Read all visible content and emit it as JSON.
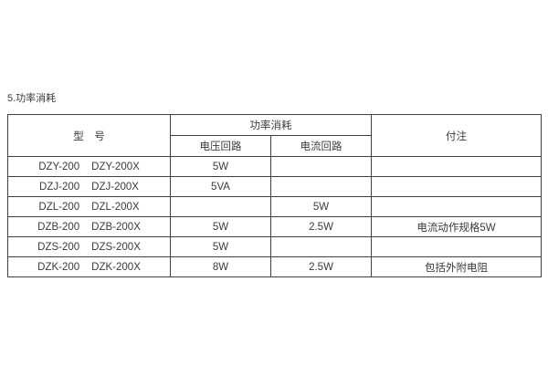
{
  "page": {
    "title": "5.功率消耗",
    "background": "#ffffff",
    "border_color": "#3f3f3f",
    "text_color": "#3a3a3a"
  },
  "table": {
    "header": {
      "model": "型　号",
      "power_group": "功率消耗",
      "voltage": "电压回路",
      "current": "电流回路",
      "note": "付注"
    },
    "rows": [
      {
        "model_a": "DZY-200",
        "model_b": "DZY-200X",
        "voltage": "5W",
        "current": "",
        "note": ""
      },
      {
        "model_a": "DZJ-200",
        "model_b": "DZJ-200X",
        "voltage": "5VA",
        "current": "",
        "note": ""
      },
      {
        "model_a": "DZL-200",
        "model_b": "DZL-200X",
        "voltage": "",
        "current": "5W",
        "note": ""
      },
      {
        "model_a": "DZB-200",
        "model_b": "DZB-200X",
        "voltage": "5W",
        "current": "2.5W",
        "note": "电流动作规格5W"
      },
      {
        "model_a": "DZS-200",
        "model_b": "DZS-200X",
        "voltage": "5W",
        "current": "",
        "note": ""
      },
      {
        "model_a": "DZK-200",
        "model_b": "DZK-200X",
        "voltage": "8W",
        "current": "2.5W",
        "note": "包括外附电阻"
      }
    ]
  }
}
